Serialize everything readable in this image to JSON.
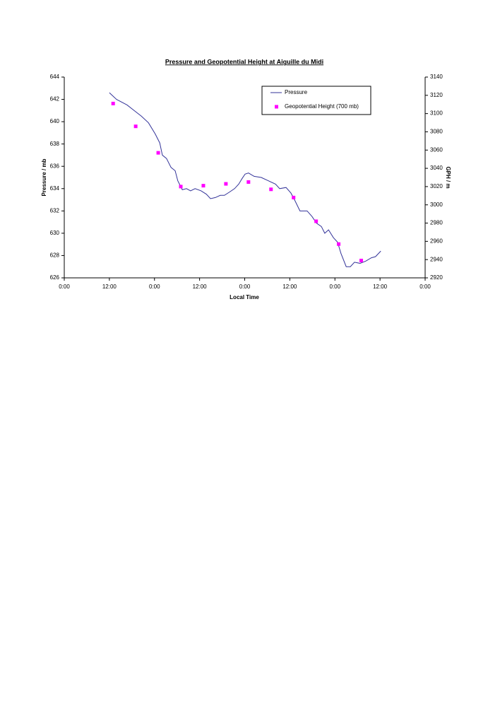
{
  "chart_data": {
    "type": "line",
    "title": "Pressure and Geopotential Height at Aiguille du Midi",
    "x_label": "Local Time",
    "y_label": "Pressure / mb",
    "y2_label": "GPH / m",
    "xlim": [
      0,
      96
    ],
    "xticks": [
      {
        "value": 0,
        "label": "0:00"
      },
      {
        "value": 12,
        "label": "12:00"
      },
      {
        "value": 24,
        "label": "0:00"
      },
      {
        "value": 36,
        "label": "12:00"
      },
      {
        "value": 48,
        "label": "0:00"
      },
      {
        "value": 60,
        "label": "12:00"
      },
      {
        "value": 72,
        "label": "0:00"
      },
      {
        "value": 84,
        "label": "12:00"
      },
      {
        "value": 96,
        "label": "0:00"
      }
    ],
    "ylim": [
      626,
      644
    ],
    "yticks": [
      626,
      628,
      630,
      632,
      634,
      636,
      638,
      640,
      642,
      644
    ],
    "y2lim": [
      2920,
      3140
    ],
    "y2ticks": [
      2920,
      2940,
      2960,
      2980,
      3000,
      3020,
      3040,
      3060,
      3080,
      3100,
      3120,
      3140
    ],
    "grid": false,
    "legend": "upper right",
    "series": [
      {
        "name": "Pressure",
        "color": "#333399",
        "type": "line",
        "x": [
          12,
          13.9,
          16.7,
          18.6,
          20.5,
          22.4,
          24.2,
          25.4,
          26.1,
          27.2,
          28.4,
          29.5,
          30.2,
          31.4,
          32.5,
          33.6,
          34.8,
          36.4,
          37.8,
          38.9,
          40.2,
          41.5,
          42.6,
          44.0,
          45.3,
          46.4,
          47.3,
          48.1,
          49.0,
          50.5,
          52.4,
          54.3,
          56.2,
          57.3,
          59.0,
          60.3,
          61.4,
          62.7,
          64.6,
          65.9,
          67.1,
          68.4,
          69.3,
          70.3,
          71.6,
          72.7,
          73.6,
          75.0,
          76.1,
          77.2,
          78.7,
          80.2,
          81.7,
          82.8,
          84.2
        ],
        "values": [
          642.6,
          642.0,
          641.5,
          641.0,
          640.5,
          639.9,
          638.9,
          638.1,
          637.0,
          636.7,
          635.9,
          635.6,
          634.7,
          633.9,
          634.0,
          633.8,
          634.0,
          633.8,
          633.5,
          633.1,
          633.2,
          633.4,
          633.4,
          633.7,
          634.0,
          634.4,
          634.9,
          635.3,
          635.4,
          635.1,
          635.0,
          634.7,
          634.4,
          634.0,
          634.1,
          633.6,
          632.9,
          632.0,
          632.0,
          631.5,
          630.9,
          630.6,
          630.0,
          630.3,
          629.6,
          629.2,
          628.2,
          627.0,
          627.0,
          627.4,
          627.3,
          627.5,
          627.8,
          627.9,
          628.4
        ]
      },
      {
        "name": "Geopotential Height (700 mb)",
        "color": "#ff00ff",
        "type": "scatter",
        "axis": "y2",
        "x": [
          13,
          19,
          25,
          31,
          37,
          43,
          49,
          55,
          61,
          67,
          73,
          79
        ],
        "values": [
          3111,
          3086,
          3057,
          3020,
          3021,
          3023,
          3025,
          3017,
          3008,
          2982,
          2957,
          2939
        ]
      }
    ]
  }
}
